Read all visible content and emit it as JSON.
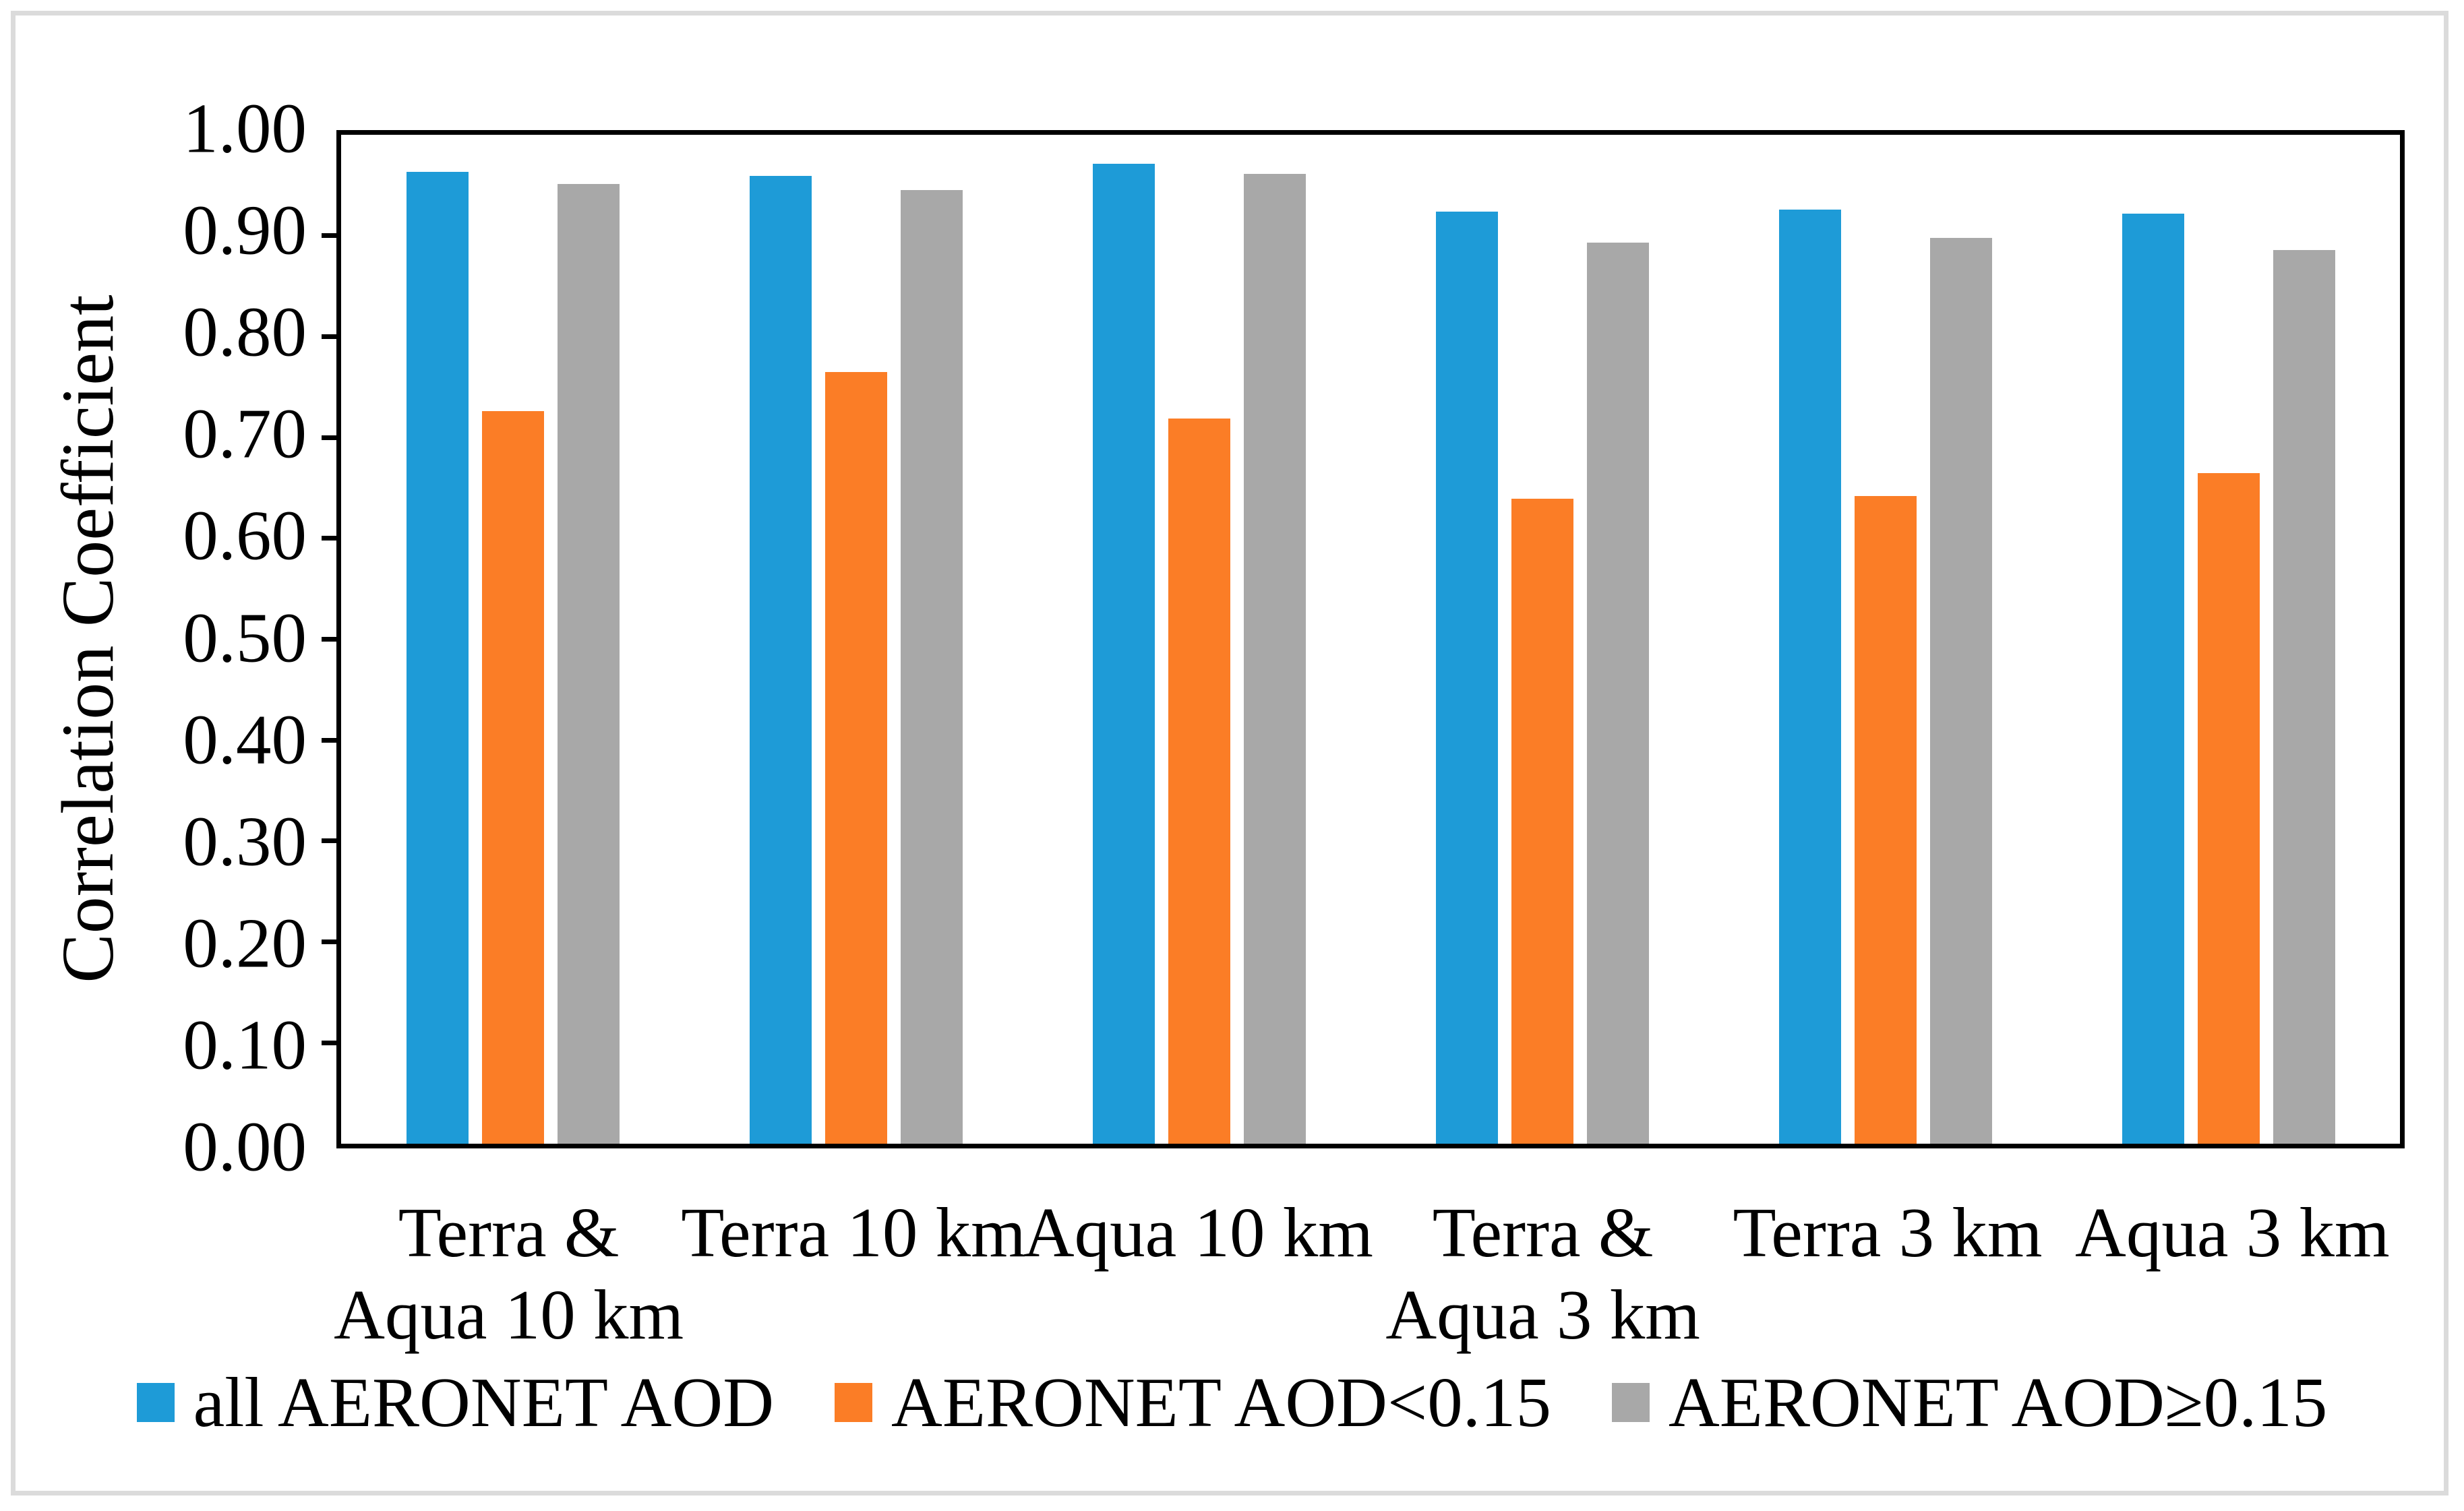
{
  "figure": {
    "background": "#FFFFFF",
    "border_color": "#DBDBDB"
  },
  "y_axis": {
    "title": "Correlation Coefficient",
    "tick_labels": [
      "1.00",
      "0.90",
      "0.80",
      "0.70",
      "0.60",
      "0.50",
      "0.40",
      "0.30",
      "0.20",
      "0.10",
      "0.00"
    ],
    "min": 0.0,
    "max": 1.0,
    "step": 0.1
  },
  "chart_data": {
    "type": "bar",
    "title": "",
    "xlabel": "",
    "ylabel": "Correlation Coefficient",
    "ylim": [
      0.0,
      1.0
    ],
    "grid": false,
    "legend_position": "bottom",
    "categories": [
      "Terra & Aqua 10 km",
      "Terra 10 km",
      "Aqua 10 km",
      "Terra & Aqua 3 km",
      "Terra 3 km",
      "Aqua 3 km"
    ],
    "category_lines": [
      [
        "Terra &",
        "Aqua 10 km"
      ],
      [
        "Terra 10 km"
      ],
      [
        "Aqua 10 km"
      ],
      [
        "Terra &",
        "Aqua 3 km"
      ],
      [
        "Terra 3 km"
      ],
      [
        "Aqua 3 km"
      ]
    ],
    "series": [
      {
        "name": "all AERONET AOD",
        "color": "#1E9BD7",
        "values": [
          0.963,
          0.959,
          0.971,
          0.924,
          0.926,
          0.922
        ]
      },
      {
        "name": "AERONET AOD<0.15",
        "color": "#FB7D26",
        "values": [
          0.726,
          0.765,
          0.719,
          0.639,
          0.642,
          0.665
        ]
      },
      {
        "name": "AERONET AOD≥0.15",
        "color": "#A8A8A8",
        "values": [
          0.951,
          0.945,
          0.961,
          0.893,
          0.898,
          0.886
        ]
      }
    ]
  }
}
